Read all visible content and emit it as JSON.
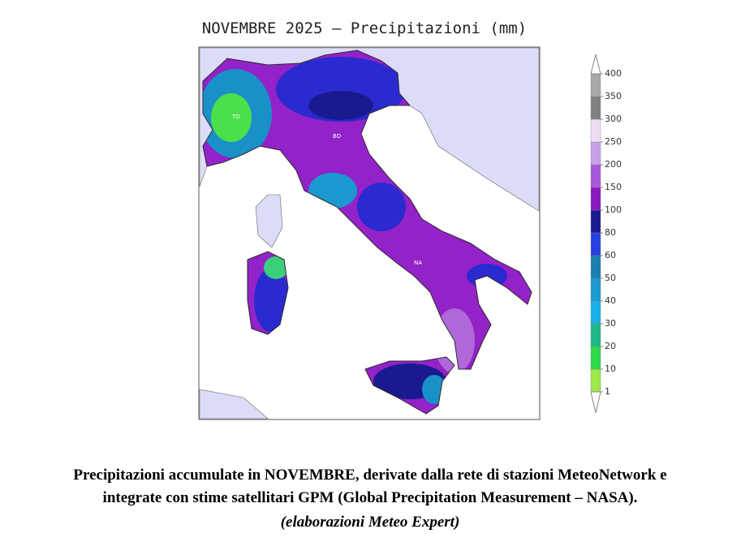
{
  "title": "NOVEMBRE 2025 – Precipitazioni (mm)",
  "map_labels": [
    "TO",
    "BO",
    "NA"
  ],
  "colorbar": {
    "levels": [
      1,
      10,
      20,
      30,
      40,
      50,
      60,
      80,
      100,
      150,
      200,
      250,
      300,
      350,
      400
    ],
    "colors": [
      "#9ee84a",
      "#2ed84a",
      "#1fb88a",
      "#1ab0e8",
      "#1a9ad0",
      "#1a7eb0",
      "#2840e0",
      "#1a1a90",
      "#8a18c0",
      "#a858d8",
      "#c8a0e8",
      "#eedcf6",
      "#808080",
      "#a8a8a8"
    ]
  },
  "caption": [
    "Precipitazioni accumulate in NOVEMBRE, derivate dalla rete di stazioni MeteoNetwork e",
    "integrate con stime satellitari GPM (Global Precipitation Measurement – NASA).",
    "(elaborazioni Meteo Expert)"
  ]
}
